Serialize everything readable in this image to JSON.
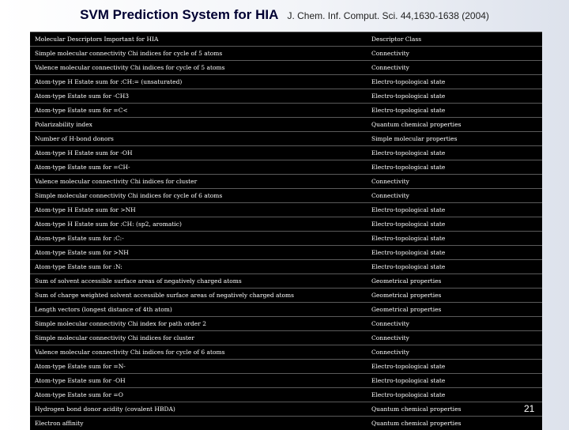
{
  "title": {
    "main": "SVM Prediction System for HIA",
    "reference": "J. Chem. Inf. Comput. Sci. 44,1630-1638 (2004)"
  },
  "table": {
    "header": [
      "Molecular Descriptors Important for HIA",
      "Descriptor Class"
    ],
    "rows": [
      [
        "Simple molecular connectivity Chi indices for cycle of 5 atoms",
        "Connectivity"
      ],
      [
        "Valence molecular connectivity Chi indices for cycle of 5 atoms",
        "Connectivity"
      ],
      [
        "Atom-type H Estate sum for :CH:= (unsaturated)",
        "Electro-topological state"
      ],
      [
        "Atom-type Estate sum for -CH3",
        "Electro-topological state"
      ],
      [
        "Atom-type Estate sum for =C<",
        "Electro-topological state"
      ],
      [
        "Polarizability index",
        "Quantum chemical properties"
      ],
      [
        "Number of H-bond donors",
        "Simple molecular properties"
      ],
      [
        "Atom-type H Estate sum for -OH",
        "Electro-topological state"
      ],
      [
        "Atom-type Estate sum for =CH-",
        "Electro-topological state"
      ],
      [
        "Valence molecular connectivity Chi indices for cluster",
        "Connectivity"
      ],
      [
        "Simple molecular connectivity Chi indices for cycle of 6 atoms",
        "Connectivity"
      ],
      [
        "Atom-type H Estate sum for >NH",
        "Electro-topological state"
      ],
      [
        "Atom-type H Estate sum for :CH: (sp2, aromatic)",
        "Electro-topological state"
      ],
      [
        "Atom-type Estate sum for :C:-",
        "Electro-topological state"
      ],
      [
        "Atom-type Estate sum for >NH",
        "Electro-topological state"
      ],
      [
        "Atom-type Estate sum for :N:",
        "Electro-topological state"
      ],
      [
        "Sum of solvent accessible surface areas of negatively charged atoms",
        "Geometrical properties"
      ],
      [
        "Sum of charge weighted solvent accessible surface areas of negatively charged atoms",
        "Geometrical properties"
      ],
      [
        "Length vectors (longest distance of 4th atom)",
        "Geometrical properties"
      ],
      [
        "Simple molecular connectivity Chi index for path order 2",
        "Connectivity"
      ],
      [
        "Simple molecular connectivity Chi indices for cluster",
        "Connectivity"
      ],
      [
        "Valence molecular connectivity Chi indices for cycle of 6 atoms",
        "Connectivity"
      ],
      [
        "Atom-type Estate sum for =N-",
        "Electro-topological state"
      ],
      [
        "Atom-type Estate sum for -OH",
        "Electro-topological state"
      ],
      [
        "Atom-type Estate sum for =O",
        "Electro-topological state"
      ],
      [
        "Hydrogen bond donor acidity (covalent HBDA)",
        "Quantum chemical properties"
      ],
      [
        "Electron affinity",
        "Quantum chemical properties"
      ]
    ]
  },
  "page_number": "21"
}
